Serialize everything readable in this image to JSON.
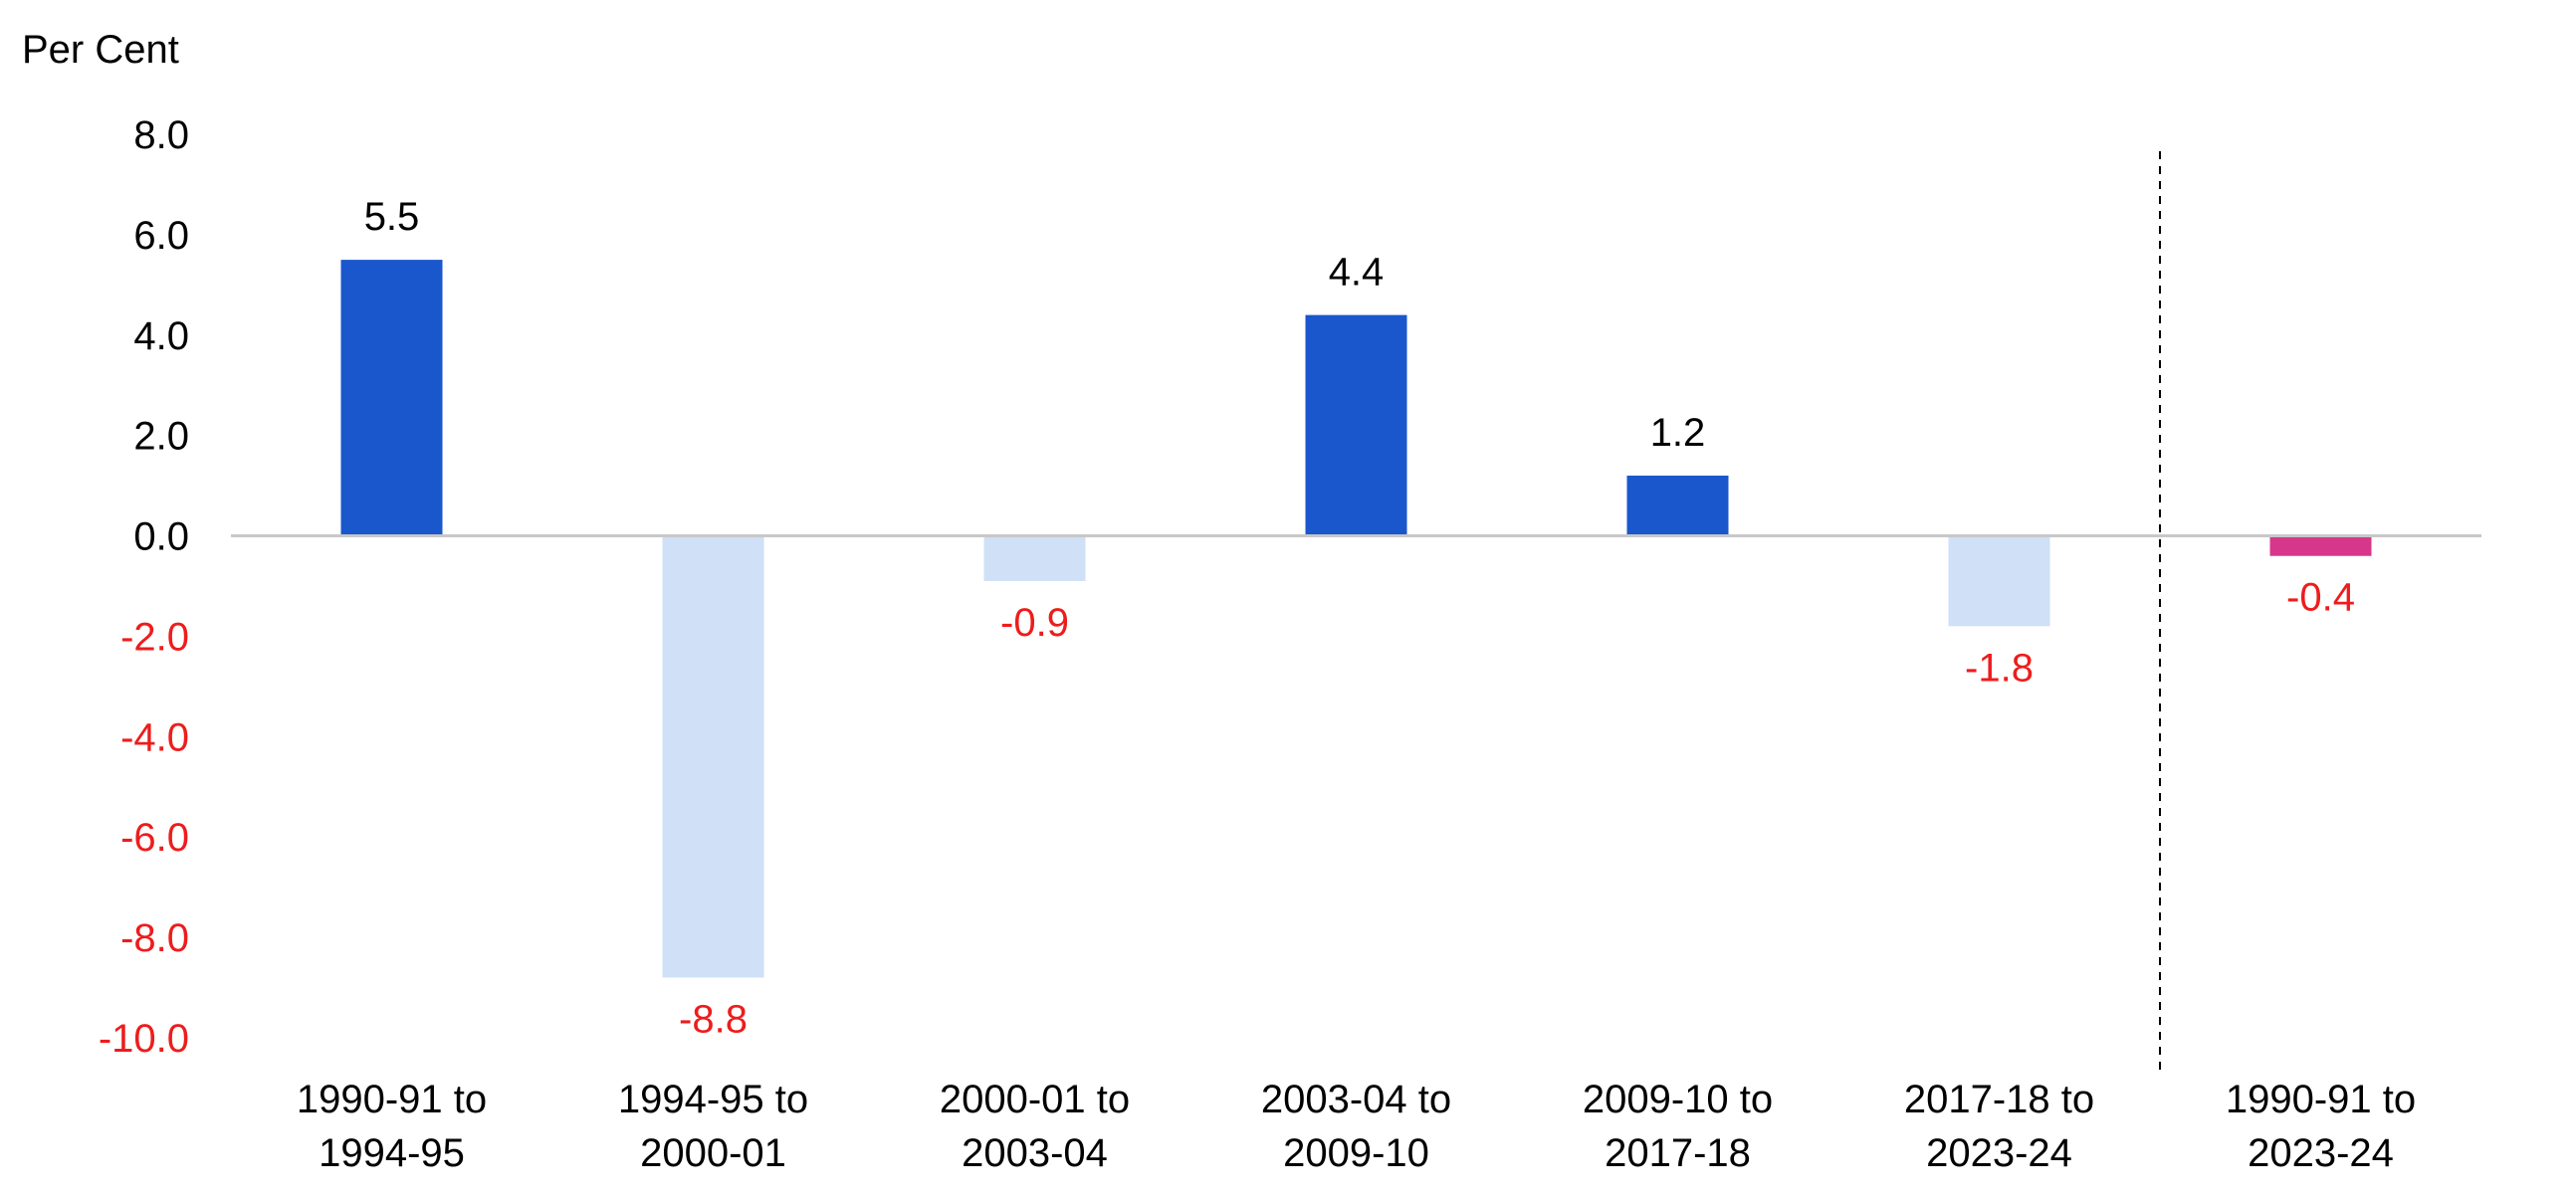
{
  "chart_data": {
    "type": "bar",
    "ylabel": "Per Cent",
    "ylim": [
      -10,
      8
    ],
    "yticks": [
      8,
      6,
      4,
      2,
      0,
      -2,
      -4,
      -6,
      -8,
      -10
    ],
    "ytick_labels": [
      "8.0",
      "6.0",
      "4.0",
      "2.0",
      "0.0",
      "-2.0",
      "-4.0",
      "-6.0",
      "-8.0",
      "-10.0"
    ],
    "grid": false,
    "legend": "none",
    "categories": [
      [
        "1990-91 to",
        "1994-95"
      ],
      [
        "1994-95 to",
        "2000-01"
      ],
      [
        "2000-01 to",
        "2003-04"
      ],
      [
        "2003-04 to",
        "2009-10"
      ],
      [
        "2009-10 to",
        "2017-18"
      ],
      [
        "2017-18 to",
        "2023-24"
      ],
      [
        "1990-91 to",
        "2023-24"
      ]
    ],
    "values": [
      5.5,
      -8.8,
      -0.9,
      4.4,
      1.2,
      -1.8,
      -0.4
    ],
    "value_labels": [
      "5.5",
      "-8.8",
      "-0.9",
      "4.4",
      "1.2",
      "-1.8",
      "-0.4"
    ],
    "bar_colors": [
      "#1a56cc",
      "#cfe0f7",
      "#cfe0f7",
      "#1a56cc",
      "#1a56cc",
      "#cfe0f7",
      "#d6378b"
    ],
    "separator_after_index": 5,
    "colors": {
      "positive_label": "#000000",
      "negative_label": "#ee1c1c",
      "axis": "#c8c8c8",
      "separator": "#000000"
    }
  }
}
